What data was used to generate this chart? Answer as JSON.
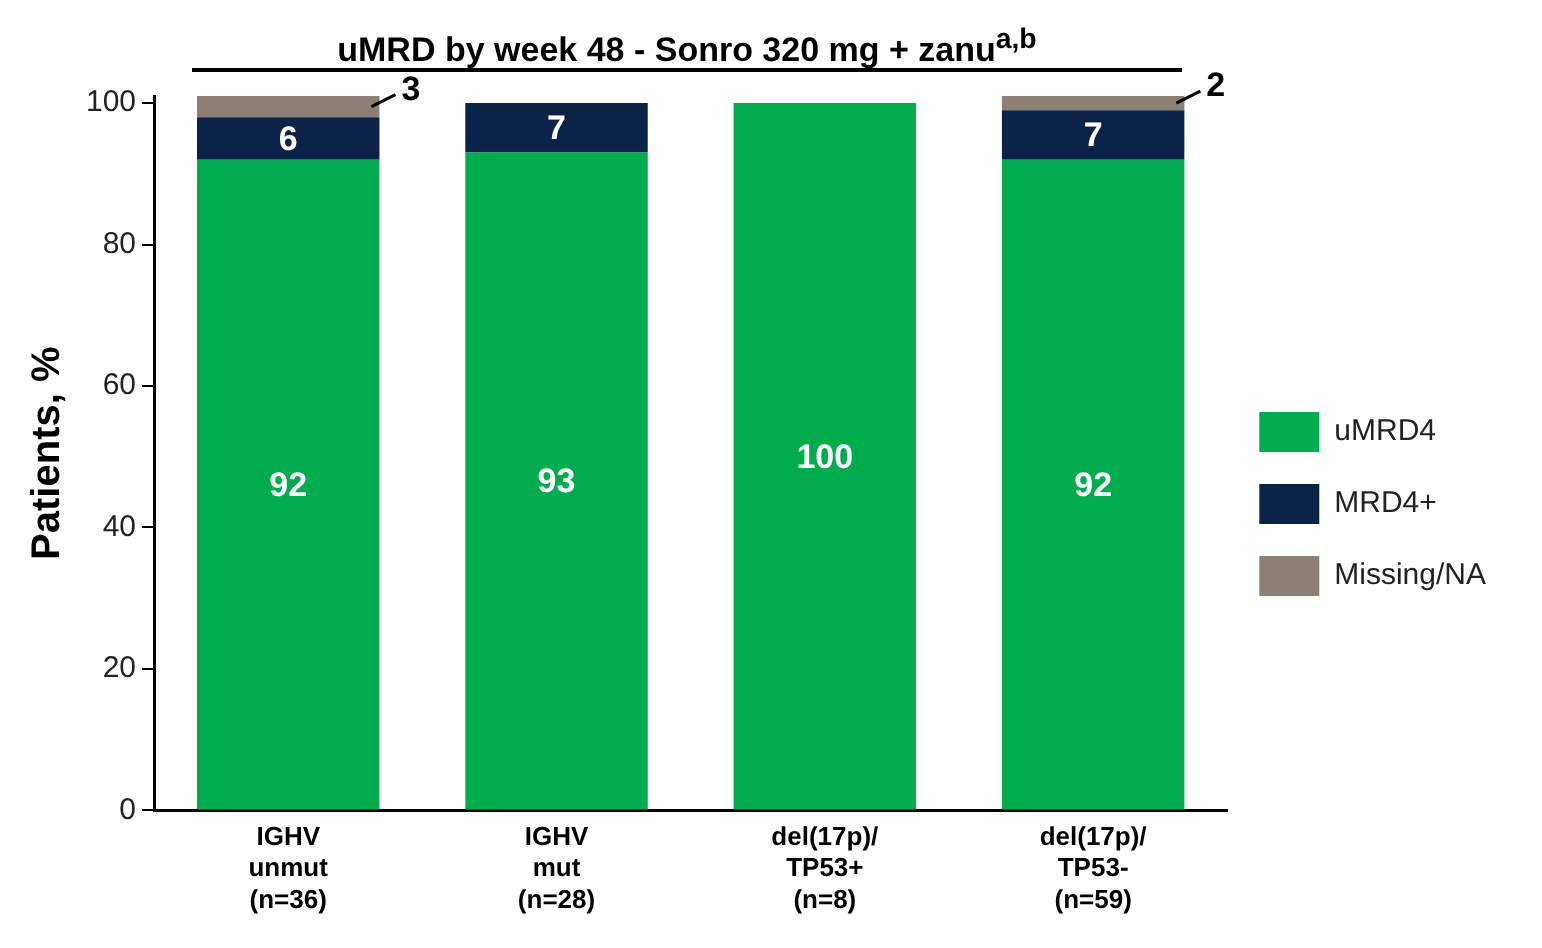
{
  "chart_data": {
    "type": "bar",
    "title": "uMRD by week 48 - Sonro 320 mg + zanu$^{a,b}$",
    "ylabel": "Patients, %",
    "categories": [
      "IGHV\nunmut\n(n=36)",
      "IGHV\nmut\n(n=28)",
      "del(17p)/\nTP53+\n(n=8)",
      "del(17p)/\nTP53-\n(n=59)"
    ],
    "stacked": true,
    "ylim": [
      0,
      101
    ],
    "yticks": [
      0,
      20,
      40,
      60,
      80,
      100
    ],
    "grid": false,
    "legend": "right",
    "series": [
      {
        "name": "uMRD4",
        "color": "#00ac4e",
        "values": [
          92,
          93,
          100,
          92
        ],
        "value_labels": [
          "92",
          "93",
          "100",
          "92"
        ]
      },
      {
        "name": "MRD4+",
        "color": "#0b2346",
        "values": [
          6,
          7,
          null,
          7
        ],
        "value_labels": [
          "6",
          "7",
          null,
          "7"
        ]
      },
      {
        "name": "Missing/NA",
        "color": "#8c7f74",
        "values": [
          3,
          null,
          null,
          2
        ],
        "value_labels": [
          "3",
          null,
          null,
          "2"
        ]
      }
    ]
  }
}
